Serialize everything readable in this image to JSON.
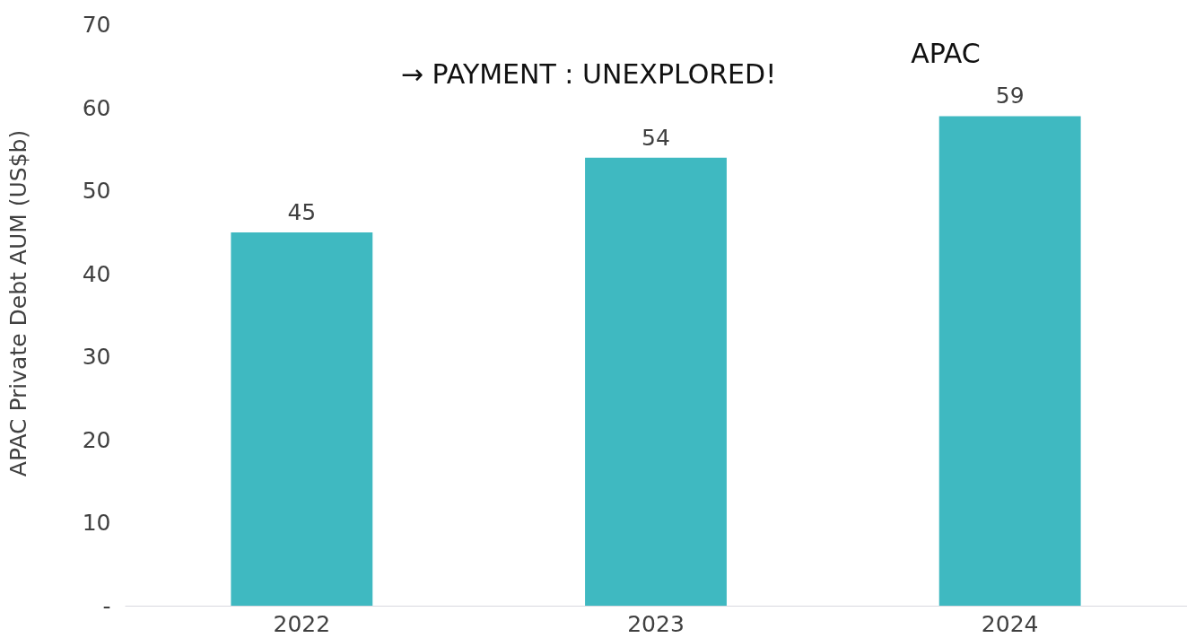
{
  "chart_data": {
    "type": "bar",
    "ylabel": "APAC Private Debt AUM (US$b)",
    "categories": [
      "2022",
      "2023",
      "2024"
    ],
    "values": [
      45,
      54,
      59
    ],
    "color": "#3fb9c1",
    "ylim": [
      0,
      73
    ],
    "yticks": [
      {
        "value": 0,
        "label": "-"
      },
      10,
      20,
      30,
      40,
      50,
      60,
      70
    ],
    "data_labels": true,
    "grid": false,
    "annotations": [
      "→ PAYMENT : UNEXPLORED!",
      "APAC"
    ]
  }
}
